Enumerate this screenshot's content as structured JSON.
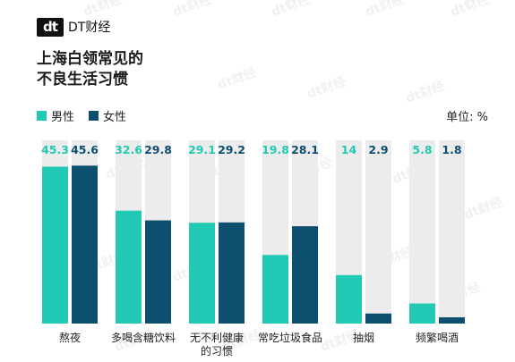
{
  "brand": {
    "logo_mark": "dt",
    "name": "DT财经"
  },
  "title": {
    "line1": "上海白领常见的",
    "line2": "不良生活习惯"
  },
  "legend": [
    {
      "label": "男性",
      "color": "#22c9b4"
    },
    {
      "label": "女性",
      "color": "#0d4f6e"
    }
  ],
  "unit": "单位: %",
  "watermark": "dt财经",
  "chart_data": {
    "type": "bar",
    "categories": [
      "熬夜",
      "多喝含糖饮料",
      "无不利健康的习惯",
      "常吃垃圾食品",
      "抽烟",
      "频繁喝酒"
    ],
    "category_lines": [
      [
        "熬夜"
      ],
      [
        "多喝含糖饮料"
      ],
      [
        "无不利健康",
        "的习惯"
      ],
      [
        "常吃垃圾食品"
      ],
      [
        "抽烟"
      ],
      [
        "频繁喝酒"
      ]
    ],
    "series": [
      {
        "name": "男性",
        "values": [
          45.3,
          32.6,
          29.1,
          19.8,
          14,
          5.8
        ],
        "color": "#22c9b4"
      },
      {
        "name": "女性",
        "values": [
          45.6,
          29.8,
          29.2,
          28.1,
          2.9,
          1.8
        ],
        "color": "#0d4f6e"
      }
    ],
    "ylim": [
      0,
      48
    ],
    "background_track": true
  }
}
